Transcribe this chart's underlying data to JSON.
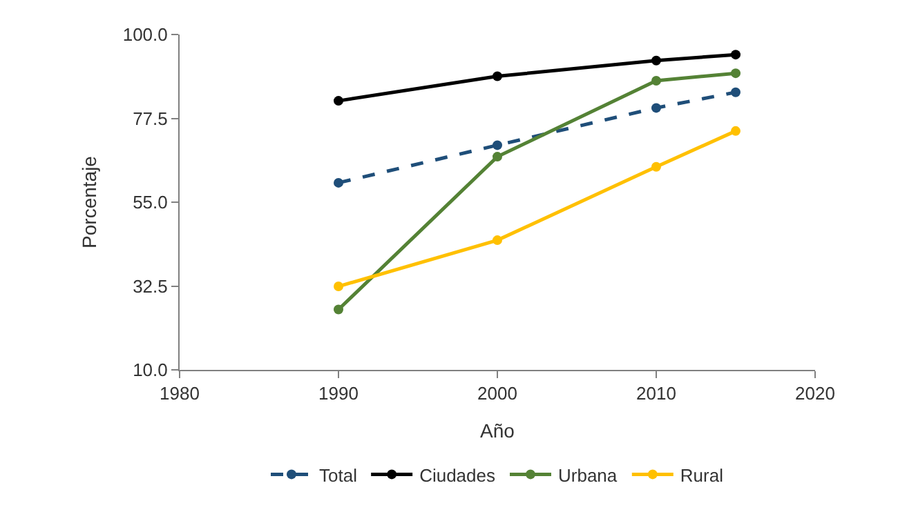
{
  "chart_data": {
    "type": "line",
    "xlabel": "Año",
    "ylabel": "Porcentaje",
    "x": [
      1990,
      2000,
      2010,
      2015
    ],
    "series": [
      {
        "name": "Total",
        "color": "#1f4e79",
        "values": [
          60.2,
          70.3,
          80.3,
          84.5
        ],
        "line_style": "dashed"
      },
      {
        "name": "Ciudades",
        "color": "#000000",
        "values": [
          82.2,
          88.8,
          93.0,
          94.6
        ]
      },
      {
        "name": "Urbana",
        "color": "#548235",
        "values": [
          26.2,
          67.2,
          87.6,
          89.6
        ]
      },
      {
        "name": "Rural",
        "color": "#ffc000",
        "values": [
          32.4,
          44.8,
          64.5,
          74.1
        ]
      }
    ],
    "xlim": [
      1980,
      2020
    ],
    "xticks": [
      1980,
      1990,
      2000,
      2010,
      2020
    ],
    "ylim": [
      10,
      100
    ],
    "yticks": [
      {
        "value": 10,
        "label": "10.0"
      },
      {
        "value": 32.5,
        "label": "32.5"
      },
      {
        "value": 55,
        "label": "55.0"
      },
      {
        "value": 77.5,
        "label": "77.5"
      },
      {
        "value": 100,
        "label": "100.0"
      }
    ],
    "grid": false,
    "legend": "bottom",
    "marker": "circle",
    "line_style": "solid"
  }
}
